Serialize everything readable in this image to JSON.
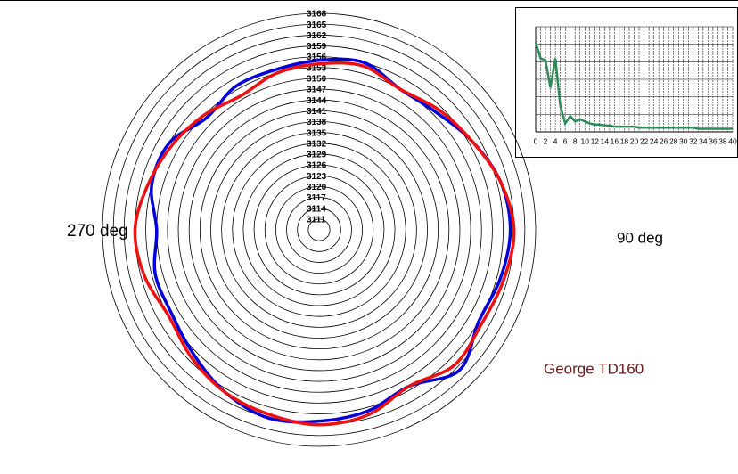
{
  "chart_data": [
    {
      "type": "polar",
      "theta": [
        0,
        15,
        30,
        45,
        60,
        75,
        90,
        105,
        120,
        135,
        150,
        165,
        180,
        195,
        210,
        225,
        240,
        255,
        270,
        285,
        300,
        315,
        330,
        345
      ],
      "rlim": [
        3108,
        3168
      ],
      "rticks": [
        3111,
        3114,
        3117,
        3120,
        3123,
        3126,
        3129,
        3132,
        3135,
        3138,
        3141,
        3144,
        3147,
        3150,
        3153,
        3156,
        3159,
        3162,
        3165,
        3168
      ],
      "series": [
        {
          "color": "#0000dd",
          "values": [
            3155,
            3156,
            3153,
            3154,
            3157,
            3160,
            3161,
            3160,
            3159,
            3163,
            3158,
            3160,
            3161,
            3162,
            3160,
            3157,
            3155,
            3155,
            3153,
            3156,
            3156,
            3152,
            3154,
            3154
          ]
        },
        {
          "color": "#ee1111",
          "values": [
            3154,
            3155,
            3153,
            3155,
            3157,
            3160,
            3162,
            3161,
            3160,
            3161,
            3158,
            3161,
            3162,
            3161,
            3160,
            3158,
            3156,
            3158,
            3159,
            3157,
            3155,
            3153,
            3151,
            3153
          ]
        }
      ],
      "annotations": [
        "270 deg",
        "90 deg",
        "George TD160"
      ]
    },
    {
      "type": "line",
      "x": [
        0,
        1,
        2,
        3,
        4,
        5,
        6,
        7,
        8,
        9,
        10,
        11,
        12,
        13,
        14,
        15,
        16,
        17,
        18,
        19,
        20,
        21,
        22,
        23,
        24,
        25,
        26,
        27,
        28,
        29,
        30,
        31,
        32,
        33,
        34,
        35,
        36,
        37,
        38,
        39,
        40
      ],
      "values": [
        85,
        70,
        68,
        42,
        70,
        25,
        8,
        15,
        10,
        12,
        10,
        8,
        7,
        7,
        6,
        6,
        5,
        5,
        5,
        5,
        5,
        4,
        4,
        4,
        4,
        4,
        4,
        4,
        4,
        4,
        4,
        4,
        4,
        3,
        3,
        3,
        3,
        3,
        3,
        3,
        3
      ],
      "color": "#2e8b57",
      "xlim": [
        0,
        40
      ],
      "ylim": [
        0,
        100
      ],
      "xticks": [
        0,
        2,
        4,
        6,
        8,
        10,
        12,
        14,
        16,
        18,
        20,
        22,
        24,
        26,
        28,
        30,
        32,
        34,
        36,
        38,
        40
      ],
      "grid": true
    }
  ]
}
